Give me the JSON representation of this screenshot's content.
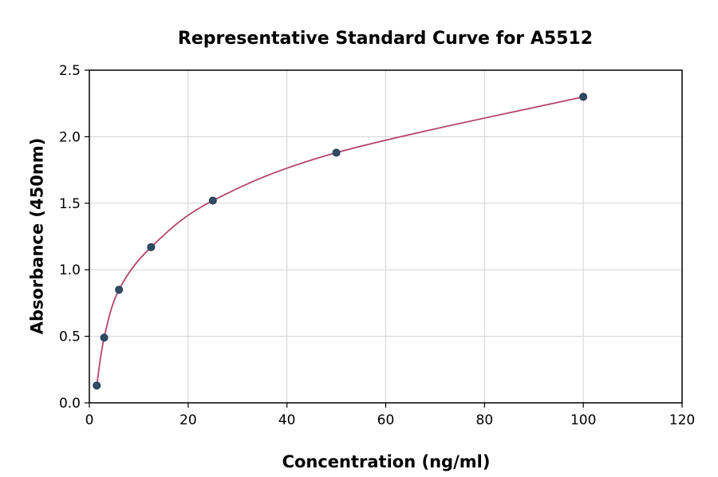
{
  "chart_data": {
    "type": "scatter",
    "title": "Representative Standard Curve for A5512",
    "xlabel": "Concentration (ng/ml)",
    "ylabel": "Absorbance (450nm)",
    "xlim": [
      0,
      120
    ],
    "ylim": [
      0.0,
      2.5
    ],
    "xticks": [
      0,
      20,
      40,
      60,
      80,
      100,
      120
    ],
    "xtick_labels": [
      "0",
      "20",
      "40",
      "60",
      "80",
      "100",
      "120"
    ],
    "yticks": [
      0.0,
      0.5,
      1.0,
      1.5,
      2.0,
      2.5
    ],
    "ytick_labels": [
      "0.0",
      "0.5",
      "1.0",
      "1.5",
      "2.0",
      "2.5"
    ],
    "grid": true,
    "legend_position": "none",
    "series": [
      {
        "name": "fitted standard curve",
        "type": "line",
        "color": "#b5446e",
        "x": [
          1.5,
          3,
          6,
          12.5,
          25,
          50,
          100
        ],
        "y": [
          0.13,
          0.49,
          0.85,
          1.17,
          1.52,
          1.88,
          2.3
        ]
      },
      {
        "name": "standard data points",
        "type": "scatter",
        "color": "#2f4b66",
        "marker_edge_color": "#24394d",
        "x": [
          1.5,
          3,
          6,
          12.5,
          25,
          50,
          100
        ],
        "y": [
          0.13,
          0.49,
          0.85,
          1.17,
          1.52,
          1.88,
          2.3
        ]
      }
    ],
    "grid_color": "#d3d3d3",
    "axis_color": "#000000",
    "background_color": "#ffffff"
  }
}
